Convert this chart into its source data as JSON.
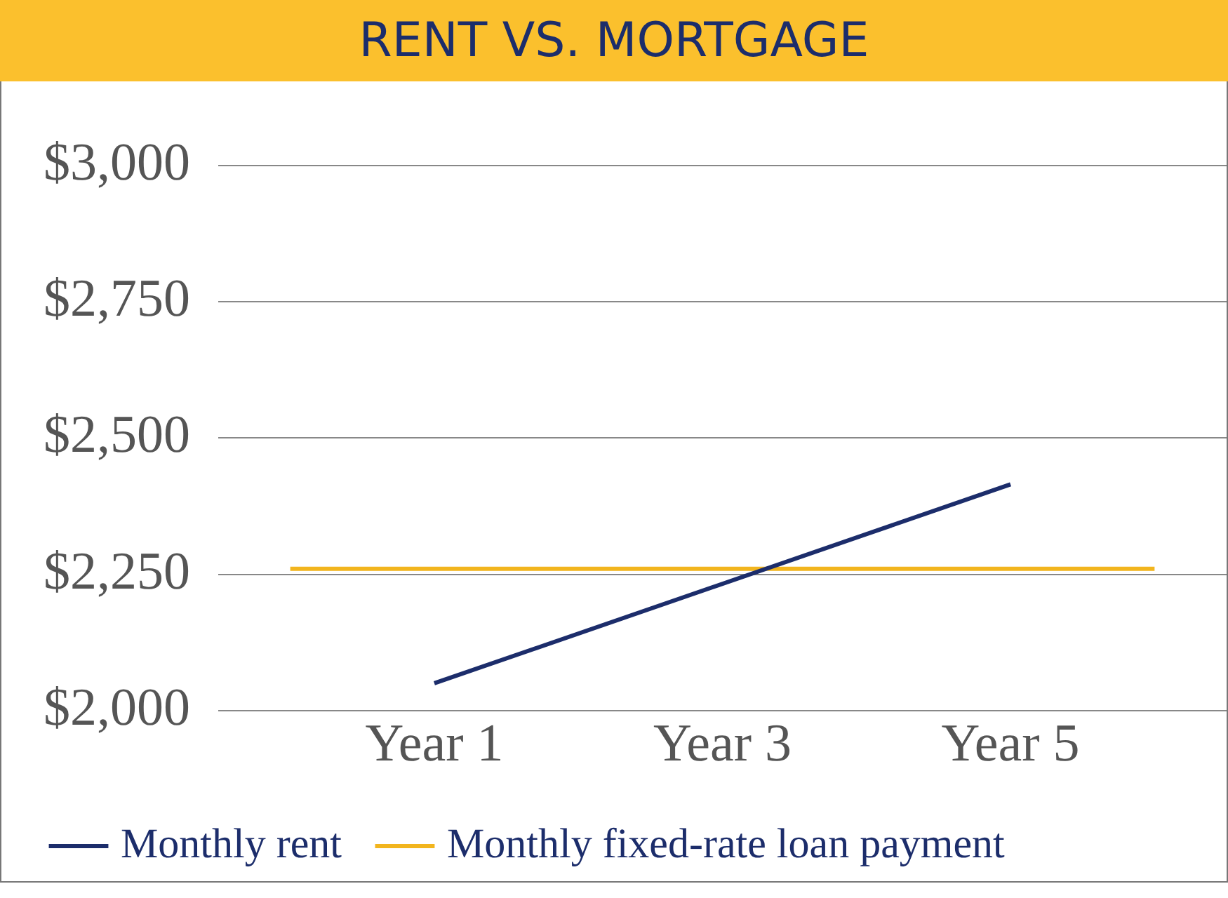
{
  "chart_data": {
    "type": "line",
    "title": "RENT VS. MORTGAGE",
    "series": [
      {
        "name": "Monthly rent",
        "color": "#1c2d6b",
        "values": [
          null,
          2050,
          null,
          null,
          null,
          2415,
          null
        ]
      },
      {
        "name": "Monthly fixed-rate loan payment",
        "color": "#f2b51e",
        "values": [
          2260,
          2260,
          2260,
          2260,
          2260,
          2260,
          2260
        ]
      }
    ],
    "categories": [
      null,
      "Year 1",
      null,
      "Year 3",
      null,
      "Year 5",
      null
    ],
    "ylim": [
      2000,
      3000
    ],
    "yticks": [
      {
        "value": 2000,
        "label": "$2,000"
      },
      {
        "value": 2250,
        "label": "$2,250"
      },
      {
        "value": 2500,
        "label": "$2,500"
      },
      {
        "value": 2750,
        "label": "$2,750"
      },
      {
        "value": 3000,
        "label": "$3,000"
      }
    ],
    "grid": "y",
    "legend": "bottom",
    "marker": "none",
    "line_style": "solid"
  }
}
